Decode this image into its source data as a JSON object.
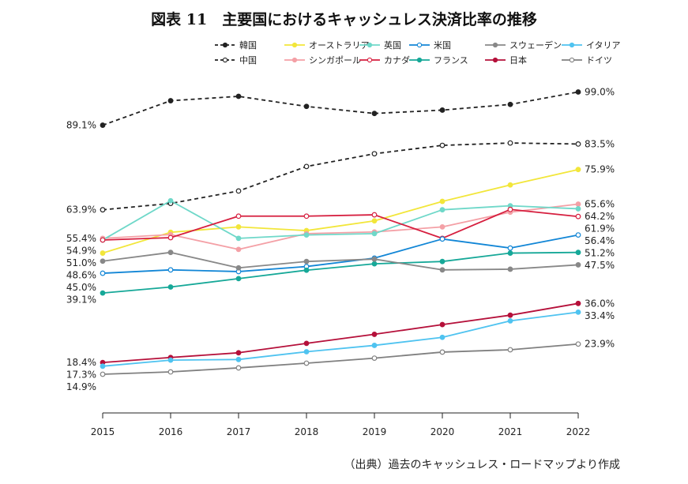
{
  "title": "図表 11　主要国におけるキャッシュレス決済比率の推移",
  "source": "（出典）過去のキャッシュレス・ロードマップより作成",
  "chart_data": {
    "type": "line",
    "title": "図表 11　主要国におけるキャッシュレス決済比率の推移",
    "xlabel": "",
    "ylabel": "",
    "x": [
      2015,
      2016,
      2017,
      2018,
      2019,
      2020,
      2021,
      2022
    ],
    "ylim": [
      0,
      105
    ],
    "grid": false,
    "legend_position": "top",
    "series": [
      {
        "name": "韓国",
        "color": "#222222",
        "dash": true,
        "marker": "filled",
        "values": [
          89.1,
          96.4,
          97.7,
          94.7,
          92.6,
          93.6,
          95.3,
          99.0
        ],
        "left_label": "89.1%",
        "right_label": "99.0%"
      },
      {
        "name": "中国",
        "color": "#222222",
        "dash": true,
        "marker": "open",
        "values": [
          63.9,
          65.8,
          69.5,
          76.8,
          80.6,
          83.1,
          83.8,
          83.5
        ],
        "left_label": "63.9%",
        "right_label": "83.5%"
      },
      {
        "name": "オーストラリア",
        "color": "#f2e63a",
        "marker": "filled",
        "values": [
          51.0,
          57.2,
          58.8,
          57.7,
          60.6,
          66.4,
          71.3,
          75.9
        ],
        "left_label": "51.0%",
        "right_label": "75.9%"
      },
      {
        "name": "シンガポール",
        "color": "#f4a0a6",
        "marker": "filled",
        "values": [
          55.4,
          56.5,
          52.1,
          56.8,
          57.3,
          58.8,
          63.2,
          65.6
        ],
        "left_label": "55.4%",
        "right_label": "65.6%"
      },
      {
        "name": "英国",
        "color": "#6fd8c9",
        "marker": "filled",
        "values": [
          54.9,
          66.6,
          55.4,
          56.4,
          56.8,
          63.9,
          65.1,
          64.2
        ],
        "left_label": "54.9%",
        "right_label": "64.2%"
      },
      {
        "name": "カナダ",
        "color": "#d61f3f",
        "marker": "open",
        "values": [
          54.9,
          55.6,
          62.0,
          62.0,
          62.4,
          55.4,
          64.0,
          61.9
        ],
        "left_label": "",
        "right_label": "61.9%"
      },
      {
        "name": "米国",
        "color": "#1286d6",
        "marker": "open",
        "values": [
          45.0,
          46.0,
          45.5,
          47.0,
          49.5,
          55.2,
          52.5,
          56.4
        ],
        "left_label": "45.0%",
        "right_label": "56.4%"
      },
      {
        "name": "フランス",
        "color": "#16a898",
        "marker": "filled",
        "values": [
          39.1,
          40.9,
          43.4,
          45.9,
          47.8,
          48.5,
          51.0,
          51.2
        ],
        "left_label": "39.1%",
        "right_label": "51.2%"
      },
      {
        "name": "スウェーデン",
        "color": "#888888",
        "marker": "filled",
        "values": [
          48.6,
          51.2,
          46.6,
          48.5,
          49.2,
          46.0,
          46.2,
          47.5
        ],
        "left_label": "48.6%",
        "right_label": "47.5%"
      },
      {
        "name": "日本",
        "color": "#b5103a",
        "marker": "filled",
        "values": [
          18.4,
          19.9,
          21.3,
          24.1,
          26.8,
          29.7,
          32.5,
          36.0
        ],
        "left_label": "18.4%",
        "right_label": "36.0%"
      },
      {
        "name": "イタリア",
        "color": "#4fc3f0",
        "marker": "filled",
        "values": [
          17.3,
          19.1,
          19.3,
          21.6,
          23.5,
          25.9,
          30.8,
          33.4
        ],
        "left_label": "17.3%",
        "right_label": "33.4%"
      },
      {
        "name": "ドイツ",
        "color": "#808080",
        "marker": "open",
        "values": [
          14.9,
          15.6,
          16.8,
          18.2,
          19.7,
          21.5,
          22.2,
          23.9
        ],
        "left_label": "14.9%",
        "right_label": "23.9%"
      }
    ],
    "legend_rows": [
      [
        "韓国",
        "オーストラリア",
        "英国",
        "米国",
        "スウェーデン",
        "イタリア"
      ],
      [
        "中国",
        "シンガポール",
        "カナダ",
        "フランス",
        "日本",
        "ドイツ"
      ]
    ]
  }
}
